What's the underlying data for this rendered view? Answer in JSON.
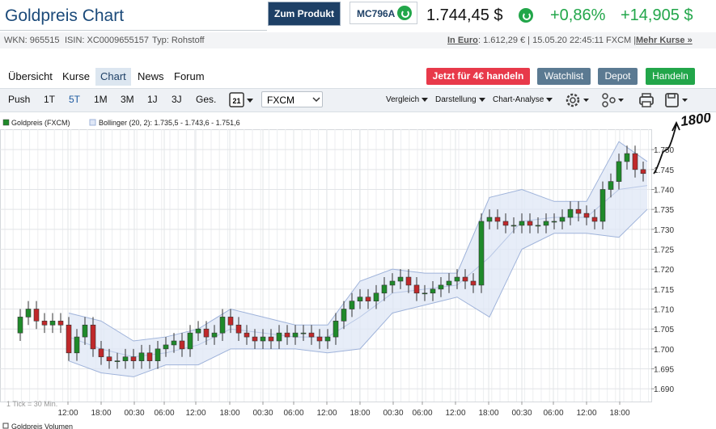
{
  "header": {
    "title": "Goldpreis Chart",
    "product_button": "Zum Produkt",
    "product_code": "MC796A",
    "price": "1.744,45 $",
    "change_pct": "+0,86%",
    "change_abs": "+14,905 $",
    "wkn": "WKN: 965515",
    "isin": "ISIN: XC0009655157",
    "asset_type": "Typ: Rohstoff",
    "euro_label": "In Euro",
    "euro_info": ": 1.612,29 € | 15.05.20 22:45:11 FXCM |",
    "more_quotes": "Mehr Kurse »"
  },
  "tabs": [
    "Übersicht",
    "Kurse",
    "Chart",
    "News",
    "Forum"
  ],
  "actions": [
    "Jetzt für 4€ handeln",
    "Watchlist",
    "Depot",
    "Handeln"
  ],
  "toolbar": {
    "periods": [
      "Push",
      "1T",
      "5T",
      "1M",
      "3M",
      "1J",
      "3J",
      "Ges."
    ],
    "calendar": "21",
    "source": "FXCM",
    "menus": [
      "Vergleich",
      "Darstellung",
      "Chart-Analyse"
    ]
  },
  "chart_data": {
    "type": "candlestick",
    "name": "Goldpreis (FXCM)",
    "up_color": "#1f8a2a",
    "down_color": "#c0282a",
    "x": [
      2.5,
      3.5,
      4.5,
      5.5,
      6.5,
      7.5,
      8.5,
      9.5,
      10.5,
      11.5,
      12.5,
      13.5,
      14.5,
      15.5,
      16.5,
      17.5,
      18.5,
      19.5,
      20.5,
      21.5,
      22.5,
      23.5,
      24.5,
      25.5,
      26.5,
      27.5,
      28.5,
      29.5,
      30.5,
      31.5,
      32.5,
      33.5,
      34.5,
      35.5,
      36.5,
      37.5,
      38.5,
      39.5,
      40.5,
      41.5,
      42.5,
      43.5,
      44.5,
      45.5,
      46.5,
      47.5,
      48.5,
      49.5,
      50.5,
      51.5,
      52.5,
      53.5,
      54.5,
      55.5,
      56.5,
      57.5,
      58.5,
      59.5,
      60.5,
      61.5,
      62.5,
      63.5,
      64.5,
      65.5,
      66.5,
      67.5,
      68.5,
      69.5,
      70.5,
      71.5,
      72.5,
      73.5,
      74.5,
      75.5,
      76.5,
      77.5,
      78.5,
      79.5
    ],
    "open": [
      1.704,
      1.708,
      1.71,
      1.707,
      1.706,
      1.707,
      1.706,
      1.699,
      1.703,
      1.706,
      1.7,
      1.698,
      1.697,
      1.697,
      1.698,
      1.697,
      1.699,
      1.697,
      1.7,
      1.701,
      1.702,
      1.7,
      1.704,
      1.705,
      1.703,
      1.704,
      1.708,
      1.706,
      1.704,
      1.703,
      1.702,
      1.703,
      1.702,
      1.704,
      1.703,
      1.704,
      1.704,
      1.703,
      1.702,
      1.703,
      1.707,
      1.71,
      1.712,
      1.713,
      1.712,
      1.714,
      1.716,
      1.717,
      1.718,
      1.716,
      1.714,
      1.714,
      1.715,
      1.716,
      1.717,
      1.718,
      1.717,
      1.716,
      1.732,
      1.733,
      1.732,
      1.731,
      1.731,
      1.732,
      1.731,
      1.731,
      1.732,
      1.732,
      1.733,
      1.735,
      1.734,
      1.733,
      1.732,
      1.74,
      1.742,
      1.747,
      1.749,
      1.745
    ],
    "high": [
      1.71,
      1.712,
      1.712,
      1.709,
      1.709,
      1.709,
      1.708,
      1.705,
      1.708,
      1.708,
      1.702,
      1.7,
      1.699,
      1.7,
      1.7,
      1.701,
      1.701,
      1.702,
      1.703,
      1.704,
      1.704,
      1.706,
      1.707,
      1.707,
      1.706,
      1.71,
      1.71,
      1.708,
      1.706,
      1.705,
      1.705,
      1.705,
      1.706,
      1.706,
      1.706,
      1.706,
      1.706,
      1.705,
      1.705,
      1.709,
      1.712,
      1.714,
      1.715,
      1.715,
      1.716,
      1.718,
      1.719,
      1.72,
      1.72,
      1.718,
      1.716,
      1.717,
      1.718,
      1.719,
      1.72,
      1.72,
      1.719,
      1.734,
      1.735,
      1.735,
      1.734,
      1.733,
      1.734,
      1.734,
      1.733,
      1.734,
      1.734,
      1.735,
      1.737,
      1.737,
      1.736,
      1.735,
      1.742,
      1.744,
      1.749,
      1.751,
      1.751,
      1.747
    ],
    "low": [
      1.702,
      1.706,
      1.705,
      1.704,
      1.704,
      1.704,
      1.697,
      1.697,
      1.701,
      1.698,
      1.696,
      1.695,
      1.695,
      1.695,
      1.695,
      1.695,
      1.695,
      1.695,
      1.698,
      1.699,
      1.698,
      1.698,
      1.702,
      1.701,
      1.701,
      1.702,
      1.704,
      1.702,
      1.701,
      1.7,
      1.7,
      1.7,
      1.7,
      1.701,
      1.701,
      1.702,
      1.701,
      1.7,
      1.7,
      1.701,
      1.705,
      1.708,
      1.71,
      1.71,
      1.71,
      1.712,
      1.714,
      1.715,
      1.714,
      1.712,
      1.712,
      1.712,
      1.713,
      1.714,
      1.715,
      1.715,
      1.714,
      1.714,
      1.73,
      1.73,
      1.729,
      1.729,
      1.729,
      1.729,
      1.729,
      1.729,
      1.73,
      1.73,
      1.731,
      1.732,
      1.731,
      1.73,
      1.73,
      1.738,
      1.74,
      1.745,
      1.743,
      1.742
    ],
    "close": [
      1.708,
      1.71,
      1.707,
      1.706,
      1.707,
      1.706,
      1.699,
      1.703,
      1.706,
      1.7,
      1.698,
      1.697,
      1.697,
      1.698,
      1.697,
      1.699,
      1.697,
      1.7,
      1.701,
      1.702,
      1.7,
      1.704,
      1.705,
      1.703,
      1.704,
      1.708,
      1.706,
      1.704,
      1.703,
      1.702,
      1.703,
      1.702,
      1.704,
      1.703,
      1.704,
      1.704,
      1.703,
      1.702,
      1.703,
      1.707,
      1.71,
      1.712,
      1.713,
      1.712,
      1.714,
      1.716,
      1.717,
      1.718,
      1.716,
      1.714,
      1.714,
      1.715,
      1.716,
      1.717,
      1.718,
      1.717,
      1.716,
      1.732,
      1.733,
      1.732,
      1.731,
      1.731,
      1.732,
      1.731,
      1.731,
      1.732,
      1.732,
      1.733,
      1.735,
      1.734,
      1.733,
      1.732,
      1.74,
      1.742,
      1.747,
      1.749,
      1.745,
      1.744
    ],
    "bollinger": {
      "name": "Bollinger (20, 2): 1.735,5 - 1.743,6 - 1.751,6",
      "fill": "#dfe7f6",
      "line_color": "#9fb3da",
      "middle_color": "#b9c8e6",
      "x": [
        8.5,
        12.5,
        16.5,
        20.5,
        24.5,
        28.5,
        32.5,
        36.5,
        40.5,
        44.5,
        48.5,
        52.5,
        56.5,
        60.5,
        64.5,
        68.5,
        72.5,
        76.5,
        80
      ],
      "upper": [
        1.709,
        1.707,
        1.702,
        1.703,
        1.705,
        1.71,
        1.708,
        1.706,
        1.706,
        1.717,
        1.72,
        1.719,
        1.719,
        1.738,
        1.74,
        1.737,
        1.737,
        1.752,
        1.747
      ],
      "middle": [
        1.703,
        1.7,
        1.698,
        1.699,
        1.701,
        1.705,
        1.704,
        1.703,
        1.703,
        1.708,
        1.714,
        1.715,
        1.716,
        1.723,
        1.732,
        1.733,
        1.733,
        1.74,
        1.741
      ],
      "lower": [
        1.697,
        1.694,
        1.693,
        1.696,
        1.696,
        1.7,
        1.7,
        1.7,
        1.699,
        1.7,
        1.709,
        1.711,
        1.713,
        1.708,
        1.725,
        1.729,
        1.729,
        1.728,
        1.735
      ]
    },
    "xlim": [
      0,
      80.5
    ],
    "xticks": [
      {
        "value": 8.4,
        "label": "12:00"
      },
      {
        "value": 12.5,
        "label": "18:00"
      },
      {
        "value": 16.6,
        "label": "00:30"
      },
      {
        "value": 20.3,
        "label": "06:00"
      },
      {
        "value": 24.2,
        "label": "12:00"
      },
      {
        "value": 28.4,
        "label": "18:00"
      },
      {
        "value": 32.5,
        "label": "00:30"
      },
      {
        "value": 36.3,
        "label": "06:00"
      },
      {
        "value": 40.4,
        "label": "12:00"
      },
      {
        "value": 44.5,
        "label": "18:00"
      },
      {
        "value": 48.6,
        "label": "00:30"
      },
      {
        "value": 52.2,
        "label": "06:00"
      },
      {
        "value": 56.3,
        "label": "12:00"
      },
      {
        "value": 60.4,
        "label": "18:00"
      },
      {
        "value": 64.5,
        "label": "00:30"
      },
      {
        "value": 68.4,
        "label": "06:00"
      },
      {
        "value": 72.5,
        "label": "12:00"
      },
      {
        "value": 76.6,
        "label": "18:00"
      }
    ],
    "ylim": [
      1.6868,
      1.7551
    ],
    "yticks": [
      {
        "value": 1.69,
        "label": "1.690"
      },
      {
        "value": 1.695,
        "label": "1.695"
      },
      {
        "value": 1.7,
        "label": "1.700"
      },
      {
        "value": 1.705,
        "label": "1.705"
      },
      {
        "value": 1.71,
        "label": "1.710"
      },
      {
        "value": 1.715,
        "label": "1.715"
      },
      {
        "value": 1.72,
        "label": "1.720"
      },
      {
        "value": 1.725,
        "label": "1.725"
      },
      {
        "value": 1.73,
        "label": "1.730"
      },
      {
        "value": 1.735,
        "label": "1.735"
      },
      {
        "value": 1.74,
        "label": "1.740"
      },
      {
        "value": 1.745,
        "label": "1.745"
      },
      {
        "value": 1.75,
        "label": "1.750"
      }
    ],
    "grid": true,
    "annotation": "1800",
    "footnote": "1 Tick = 30 Min."
  },
  "volume_label": "Goldpreis Volumen"
}
